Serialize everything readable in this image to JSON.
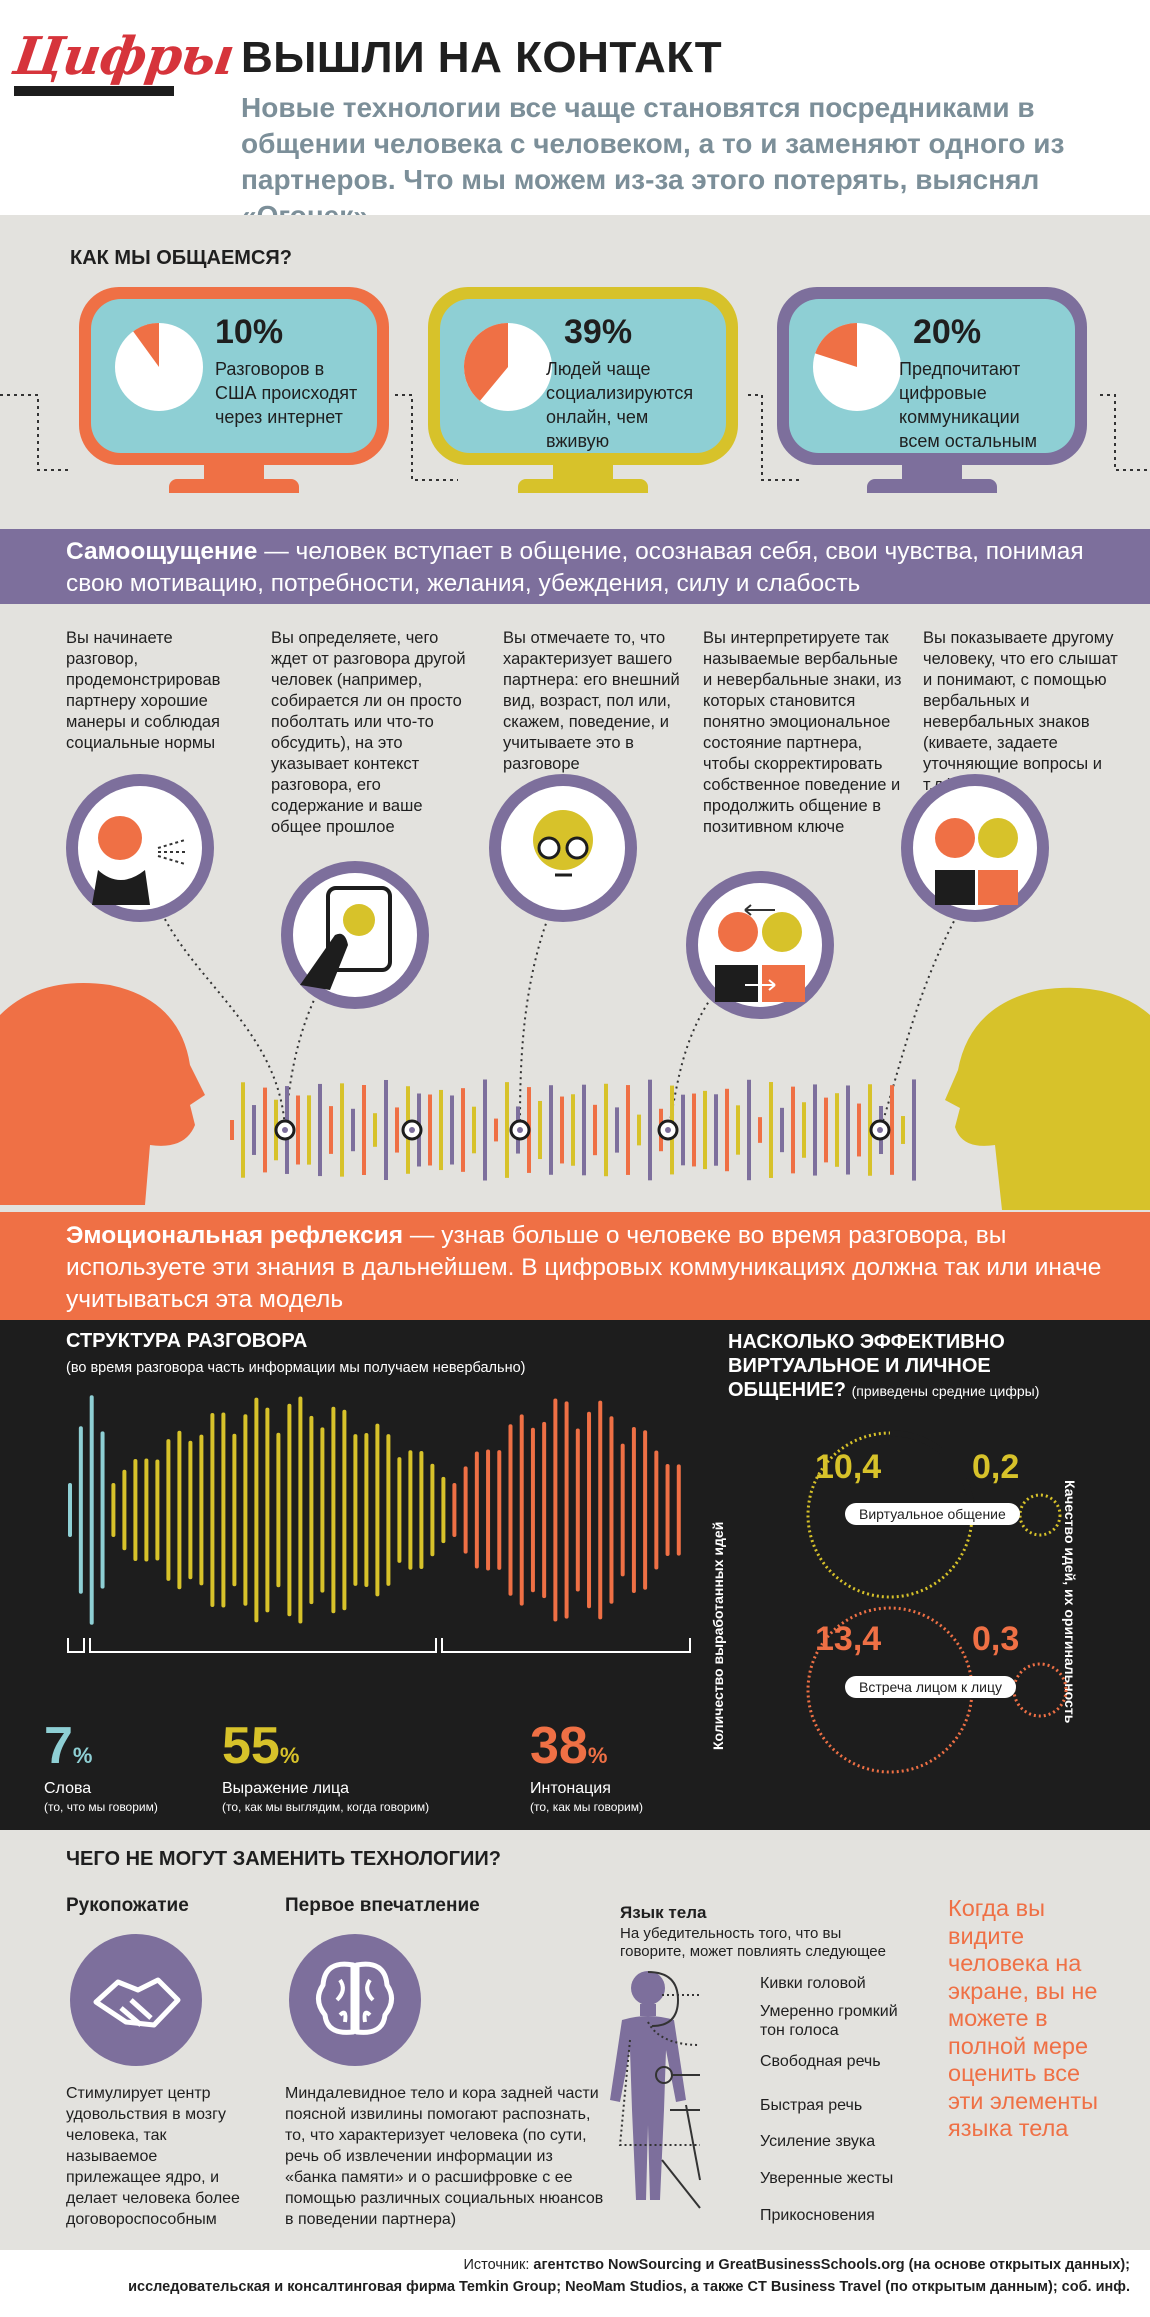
{
  "logo": "Цифры",
  "header": {
    "title": "ВЫШЛИ НА КОНТАКТ",
    "lead": "Новые технологии все чаще становятся посредниками в общении человека с человеком, а то и заменяют одного из партнеров. Что мы можем из-за этого потерять, выяснял «Огонек»"
  },
  "how": {
    "heading": "КАК МЫ ОБЩАЕМСЯ?",
    "tvs": [
      {
        "value": "10%",
        "text": "Разговоров в США происходят через интернет",
        "frame": "#ef7045",
        "share": 0.1
      },
      {
        "value": "39%",
        "text": "Людей чаще социализируются онлайн, чем вживую",
        "frame": "#d7c22a",
        "share": 0.39
      },
      {
        "value": "20%",
        "text": "Предпочитают цифровые коммуникации всем остальным",
        "frame": "#7d6f9c",
        "share": 0.2
      }
    ]
  },
  "self": {
    "term": "Самоощущение",
    "text": " — человек вступает в общение, осознавая себя, свои чувства, понимая свою мотивацию, потребности, желания, убеждения, силу и слабость"
  },
  "steps": [
    "Вы начинаете разговор, продемонстрировав партнеру хорошие манеры и соблюдая социальные нормы",
    "Вы определяете, чего ждет от разговора другой человек (например, собирается ли он просто поболтать или что-то обсудить), на это указывает контекст разговора, его содержание и ваше общее прошлое",
    "Вы отмечаете то, что характеризует вашего партнера: его внешний вид, возраст, пол или, скажем, поведение, и учитываете это в разговоре",
    "Вы интерпретируете так называемые вербальные и невербальные знаки, из которых становится понятно эмоциональное состояние партнера, чтобы скорректировать собственное поведение и продолжить общение в позитивном ключе",
    "Вы показываете другому человеку, что его слышат и понимают, с помощью вербальных и невербальных знаков (киваете, задаете уточняющие вопросы и т.д.)"
  ],
  "reflex": {
    "term": "Эмоциональная рефлексия",
    "text": " — узнав больше о человеке во время разговора, вы используете эти знания в дальнейшем. В цифровых коммуникациях должна так или иначе учитываться эта модель"
  },
  "structure": {
    "heading": "СТРУКТУРА РАЗГОВОРА",
    "sub": "(во время разговора часть информации мы получаем невербально)",
    "parts": [
      {
        "value": "7",
        "unit": "%",
        "label": "Слова",
        "note": "(то, что мы говорим)",
        "color": "#8ecfd4"
      },
      {
        "value": "55",
        "unit": "%",
        "label": "Выражение лица",
        "note": "(то, как мы выглядим, когда говорим)",
        "color": "#d7c22a"
      },
      {
        "value": "38",
        "unit": "%",
        "label": "Интонация",
        "note": "(то, как мы говорим)",
        "color": "#ef7045"
      }
    ]
  },
  "efficiency": {
    "heading": "НАСКОЛЬКО ЭФФЕКТИВНО ВИРТУАЛЬНОЕ И ЛИЧНОЕ ОБЩЕНИЕ?",
    "sub": "(приведены средние цифры)",
    "left_axis": "Количество выработанных идей",
    "right_axis": "Качество идей, их оригинальность",
    "rows": [
      {
        "label": "Виртуальное общение",
        "ideas": "10,4",
        "quality": "0,2",
        "color": "#d7c22a"
      },
      {
        "label": "Встреча лицом к лицу",
        "ideas": "13,4",
        "quality": "0,3",
        "color": "#ef7045"
      }
    ]
  },
  "cannot": {
    "heading": "ЧЕГО НЕ МОГУТ ЗАМЕНИТЬ ТЕХНОЛОГИИ?",
    "handshake": {
      "title": "Рукопожатие",
      "text": "Стимулирует центр удовольствия в мозгу человека, так называемое прилежащее ядро, и делает человека более договороспособным"
    },
    "impression": {
      "title": "Первое впечатление",
      "text": "Миндалевидное тело и кора задней части поясной извилины помогают распознать, то, что характеризует человека (по сути, речь об извлечении информации из «банка памяти» и о расшифровке с ее помощью различных социальных нюансов в поведении партнера)"
    },
    "body": {
      "title": "Язык тела",
      "sub": "На убедительность того, что вы говорите, может повлиять следующее",
      "items": [
        "Кивки головой",
        "Умеренно громкий тон голоса",
        "Свободная речь",
        "Быстрая речь",
        "Усиление звука",
        "Уверенные жесты",
        "Прикосновения"
      ]
    },
    "quote": "Когда вы видите человека на экране, вы не можете в полной мере оценить все эти элементы языка тела"
  },
  "source": {
    "label": "Источник: ",
    "line1": "агентство NowSourcing и GreatBusinessSchools.org (на основе открытых данных);",
    "line2": "исследовательская и консалтинговая фирма Temkin Group; NeoMam Studios, а также CT Business Travel (по открытым данным); соб. инф."
  },
  "colors": {
    "orange": "#ef7045",
    "yellow": "#d7c22a",
    "purple": "#7d6f9c",
    "teal": "#8ecfd4",
    "gray": "#e3e2de",
    "black": "#1d1d1d"
  }
}
